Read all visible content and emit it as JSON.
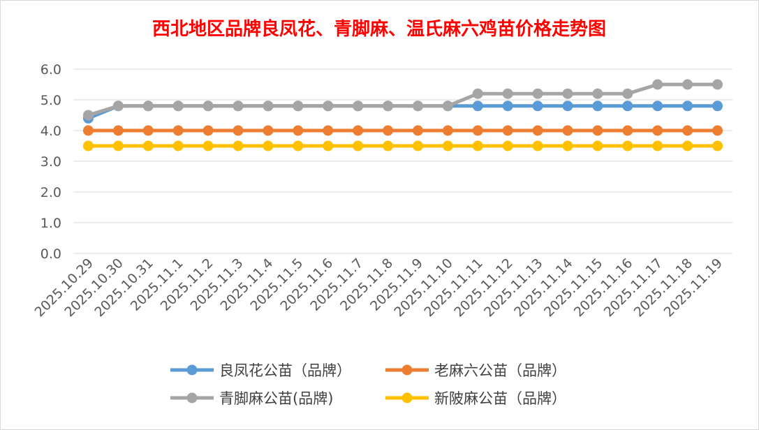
{
  "chart_data": {
    "type": "line",
    "title": "西北地区品牌良凤花、青脚麻、温氏麻六鸡苗价格走势图",
    "categories": [
      "2025.10.29",
      "2025.10.30",
      "2025.10.31",
      "2025.11.1",
      "2025.11.2",
      "2025.11.3",
      "2025.11.4",
      "2025.11.5",
      "2025.11.6",
      "2025.11.7",
      "2025.11.8",
      "2025.11.9",
      "2025.11.10",
      "2025.11.11",
      "2025.11.12",
      "2025.11.13",
      "2025.11.14",
      "2025.11.15",
      "2025.11.16",
      "2025.11.17",
      "2025.11.18",
      "2025.11.19"
    ],
    "ylim": [
      0,
      6
    ],
    "yticks": [
      "0.0",
      "1.0",
      "2.0",
      "3.0",
      "4.0",
      "5.0",
      "6.0"
    ],
    "grid": true,
    "legend_position": "bottom",
    "series": [
      {
        "name": "良凤花公苗（品牌）",
        "color": "#5B9BD5",
        "values": [
          4.4,
          4.8,
          4.8,
          4.8,
          4.8,
          4.8,
          4.8,
          4.8,
          4.8,
          4.8,
          4.8,
          4.8,
          4.8,
          4.8,
          4.8,
          4.8,
          4.8,
          4.8,
          4.8,
          4.8,
          4.8,
          4.8
        ]
      },
      {
        "name": "老麻六公苗（品牌）",
        "color": "#ED7D31",
        "values": [
          4.0,
          4.0,
          4.0,
          4.0,
          4.0,
          4.0,
          4.0,
          4.0,
          4.0,
          4.0,
          4.0,
          4.0,
          4.0,
          4.0,
          4.0,
          4.0,
          4.0,
          4.0,
          4.0,
          4.0,
          4.0,
          4.0
        ]
      },
      {
        "name": "青脚麻公苗(品牌)",
        "color": "#A5A5A5",
        "values": [
          4.5,
          4.8,
          4.8,
          4.8,
          4.8,
          4.8,
          4.8,
          4.8,
          4.8,
          4.8,
          4.8,
          4.8,
          4.8,
          5.2,
          5.2,
          5.2,
          5.2,
          5.2,
          5.2,
          5.5,
          5.5,
          5.5
        ]
      },
      {
        "name": "新陂麻公苗（品牌）",
        "color": "#FFC000",
        "values": [
          3.5,
          3.5,
          3.5,
          3.5,
          3.5,
          3.5,
          3.5,
          3.5,
          3.5,
          3.5,
          3.5,
          3.5,
          3.5,
          3.5,
          3.5,
          3.5,
          3.5,
          3.5,
          3.5,
          3.5,
          3.5,
          3.5
        ]
      }
    ]
  }
}
